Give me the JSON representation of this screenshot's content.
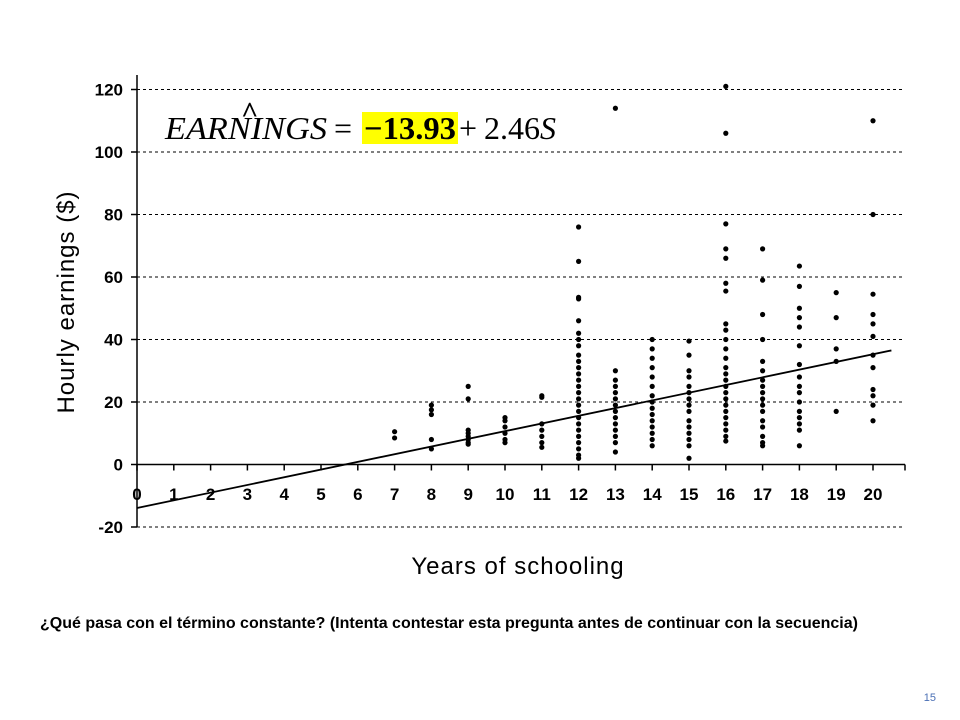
{
  "chart_data": {
    "type": "scatter",
    "title": "",
    "xlabel": "Years of schooling",
    "ylabel": "Hourly earnings ($)",
    "xlim": [
      0,
      21
    ],
    "ylim": [
      -20,
      125
    ],
    "x_ticks": [
      0,
      1,
      2,
      3,
      4,
      5,
      6,
      7,
      8,
      9,
      10,
      11,
      12,
      13,
      14,
      15,
      16,
      17,
      18,
      19,
      20
    ],
    "y_ticks": [
      -20,
      0,
      20,
      40,
      60,
      80,
      100,
      120
    ],
    "grid": "horizontal dashed",
    "regression_line": {
      "intercept": -13.93,
      "slope": 2.46,
      "x_range": [
        0,
        20.5
      ]
    },
    "equation": {
      "lhs": "EARNINGS",
      "hat": "^",
      "equals": "=",
      "intercept_text": "−13.93",
      "plus": "+",
      "slope_text": "2.46",
      "var": "S",
      "highlight_color": "#ffff00"
    },
    "points": [
      [
        7,
        10.5
      ],
      [
        7,
        8.5
      ],
      [
        8,
        19
      ],
      [
        8,
        17.5
      ],
      [
        8,
        16
      ],
      [
        8,
        8
      ],
      [
        8,
        5
      ],
      [
        9,
        25
      ],
      [
        9,
        21
      ],
      [
        9,
        11
      ],
      [
        9,
        10
      ],
      [
        9,
        9
      ],
      [
        9,
        8
      ],
      [
        9,
        7
      ],
      [
        9,
        6.5
      ],
      [
        10,
        15
      ],
      [
        10,
        14
      ],
      [
        10,
        12
      ],
      [
        10,
        10
      ],
      [
        10,
        8
      ],
      [
        10,
        7
      ],
      [
        11,
        22
      ],
      [
        11,
        21.5
      ],
      [
        11,
        13
      ],
      [
        11,
        11
      ],
      [
        11,
        9
      ],
      [
        11,
        7
      ],
      [
        11,
        5.5
      ],
      [
        12,
        76
      ],
      [
        12,
        65
      ],
      [
        12,
        53.5
      ],
      [
        12,
        53
      ],
      [
        12,
        46
      ],
      [
        12,
        42
      ],
      [
        12,
        40
      ],
      [
        12,
        38
      ],
      [
        12,
        35
      ],
      [
        12,
        33
      ],
      [
        12,
        31
      ],
      [
        12,
        29
      ],
      [
        12,
        27
      ],
      [
        12,
        25
      ],
      [
        12,
        23
      ],
      [
        12,
        21
      ],
      [
        12,
        19
      ],
      [
        12,
        17
      ],
      [
        12,
        15
      ],
      [
        12,
        13
      ],
      [
        12,
        11
      ],
      [
        12,
        9
      ],
      [
        12,
        7
      ],
      [
        12,
        5
      ],
      [
        12,
        3
      ],
      [
        12,
        2
      ],
      [
        13,
        114
      ],
      [
        13,
        30
      ],
      [
        13,
        27
      ],
      [
        13,
        25
      ],
      [
        13,
        23
      ],
      [
        13,
        21
      ],
      [
        13,
        19
      ],
      [
        13,
        17
      ],
      [
        13,
        15
      ],
      [
        13,
        13
      ],
      [
        13,
        11
      ],
      [
        13,
        9
      ],
      [
        13,
        7
      ],
      [
        13,
        4
      ],
      [
        14,
        40
      ],
      [
        14,
        37
      ],
      [
        14,
        34
      ],
      [
        14,
        31
      ],
      [
        14,
        28
      ],
      [
        14,
        25
      ],
      [
        14,
        22
      ],
      [
        14,
        20
      ],
      [
        14,
        18
      ],
      [
        14,
        16
      ],
      [
        14,
        14
      ],
      [
        14,
        12
      ],
      [
        14,
        10
      ],
      [
        14,
        8
      ],
      [
        14,
        6
      ],
      [
        15,
        39.5
      ],
      [
        15,
        35
      ],
      [
        15,
        30
      ],
      [
        15,
        28
      ],
      [
        15,
        25
      ],
      [
        15,
        23
      ],
      [
        15,
        21
      ],
      [
        15,
        19
      ],
      [
        15,
        17
      ],
      [
        15,
        14
      ],
      [
        15,
        12
      ],
      [
        15,
        10
      ],
      [
        15,
        8
      ],
      [
        15,
        6
      ],
      [
        15,
        2
      ],
      [
        16,
        121
      ],
      [
        16,
        106
      ],
      [
        16,
        77
      ],
      [
        16,
        69
      ],
      [
        16,
        66
      ],
      [
        16,
        58
      ],
      [
        16,
        55.5
      ],
      [
        16,
        45
      ],
      [
        16,
        43
      ],
      [
        16,
        40
      ],
      [
        16,
        37
      ],
      [
        16,
        34
      ],
      [
        16,
        31
      ],
      [
        16,
        29
      ],
      [
        16,
        27
      ],
      [
        16,
        25
      ],
      [
        16,
        23
      ],
      [
        16,
        21
      ],
      [
        16,
        19
      ],
      [
        16,
        17
      ],
      [
        16,
        15
      ],
      [
        16,
        13
      ],
      [
        16,
        11
      ],
      [
        16,
        9
      ],
      [
        16,
        7.5
      ],
      [
        17,
        69
      ],
      [
        17,
        59
      ],
      [
        17,
        48
      ],
      [
        17,
        40
      ],
      [
        17,
        33
      ],
      [
        17,
        30
      ],
      [
        17,
        27
      ],
      [
        17,
        25
      ],
      [
        17,
        23
      ],
      [
        17,
        21
      ],
      [
        17,
        19
      ],
      [
        17,
        17
      ],
      [
        17,
        14
      ],
      [
        17,
        12
      ],
      [
        17,
        9
      ],
      [
        17,
        7
      ],
      [
        17,
        6
      ],
      [
        18,
        63.5
      ],
      [
        18,
        57
      ],
      [
        18,
        50
      ],
      [
        18,
        47
      ],
      [
        18,
        44
      ],
      [
        18,
        38
      ],
      [
        18,
        32
      ],
      [
        18,
        28
      ],
      [
        18,
        25
      ],
      [
        18,
        23
      ],
      [
        18,
        20
      ],
      [
        18,
        17
      ],
      [
        18,
        15
      ],
      [
        18,
        13
      ],
      [
        18,
        11
      ],
      [
        18,
        6
      ],
      [
        19,
        55
      ],
      [
        19,
        47
      ],
      [
        19,
        37
      ],
      [
        19,
        33
      ],
      [
        19,
        17
      ],
      [
        20,
        110
      ],
      [
        20,
        80
      ],
      [
        20,
        54.5
      ],
      [
        20,
        48
      ],
      [
        20,
        45
      ],
      [
        20,
        41
      ],
      [
        20,
        35
      ],
      [
        20,
        31
      ],
      [
        20,
        24
      ],
      [
        20,
        22
      ],
      [
        20,
        19
      ],
      [
        20,
        14
      ]
    ]
  },
  "caption": "¿Qué pasa con el término constante? (Intenta contestar esta pregunta antes de continuar con la secuencia)",
  "page_number": "15"
}
